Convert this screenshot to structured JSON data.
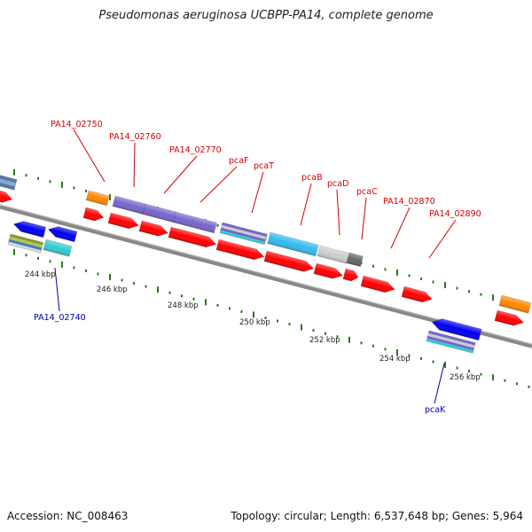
{
  "title": "Pseudomonas aeruginosa UCBPP-PA14, complete genome",
  "footer": {
    "accession": "Accession: NC_008463",
    "stats": "Topology: circular; Length: 6,537,648 bp; Genes: 5,964"
  },
  "colors": {
    "gene_label": "#d40000",
    "gene_label_minus": "#0000aa",
    "tick": "#2a7a1a",
    "backbone": "#888888",
    "cds": "#ff0000",
    "cds_minus": "#0000ee",
    "purple": "#7766cc",
    "cyan": "#33bbee",
    "orange": "#ff8800",
    "teal": "#33cccc",
    "lightgray": "#cccccc",
    "darkgray": "#666666",
    "steelblue": "#5577aa",
    "olive": "#889933"
  },
  "scale_labels": [
    "244 kbp",
    "246 kbp",
    "248 kbp",
    "250 kbp",
    "252 kbp",
    "254 kbp",
    "256 kbp"
  ],
  "plus_labels": [
    "PA14_02750",
    "PA14_02760",
    "PA14_02770",
    "pcaF",
    "pcaT",
    "pcaB",
    "pcaD",
    "pcaC",
    "PA14_02870",
    "PA14_02890"
  ],
  "minus_labels": [
    "PA14_02740",
    "pcaK"
  ]
}
